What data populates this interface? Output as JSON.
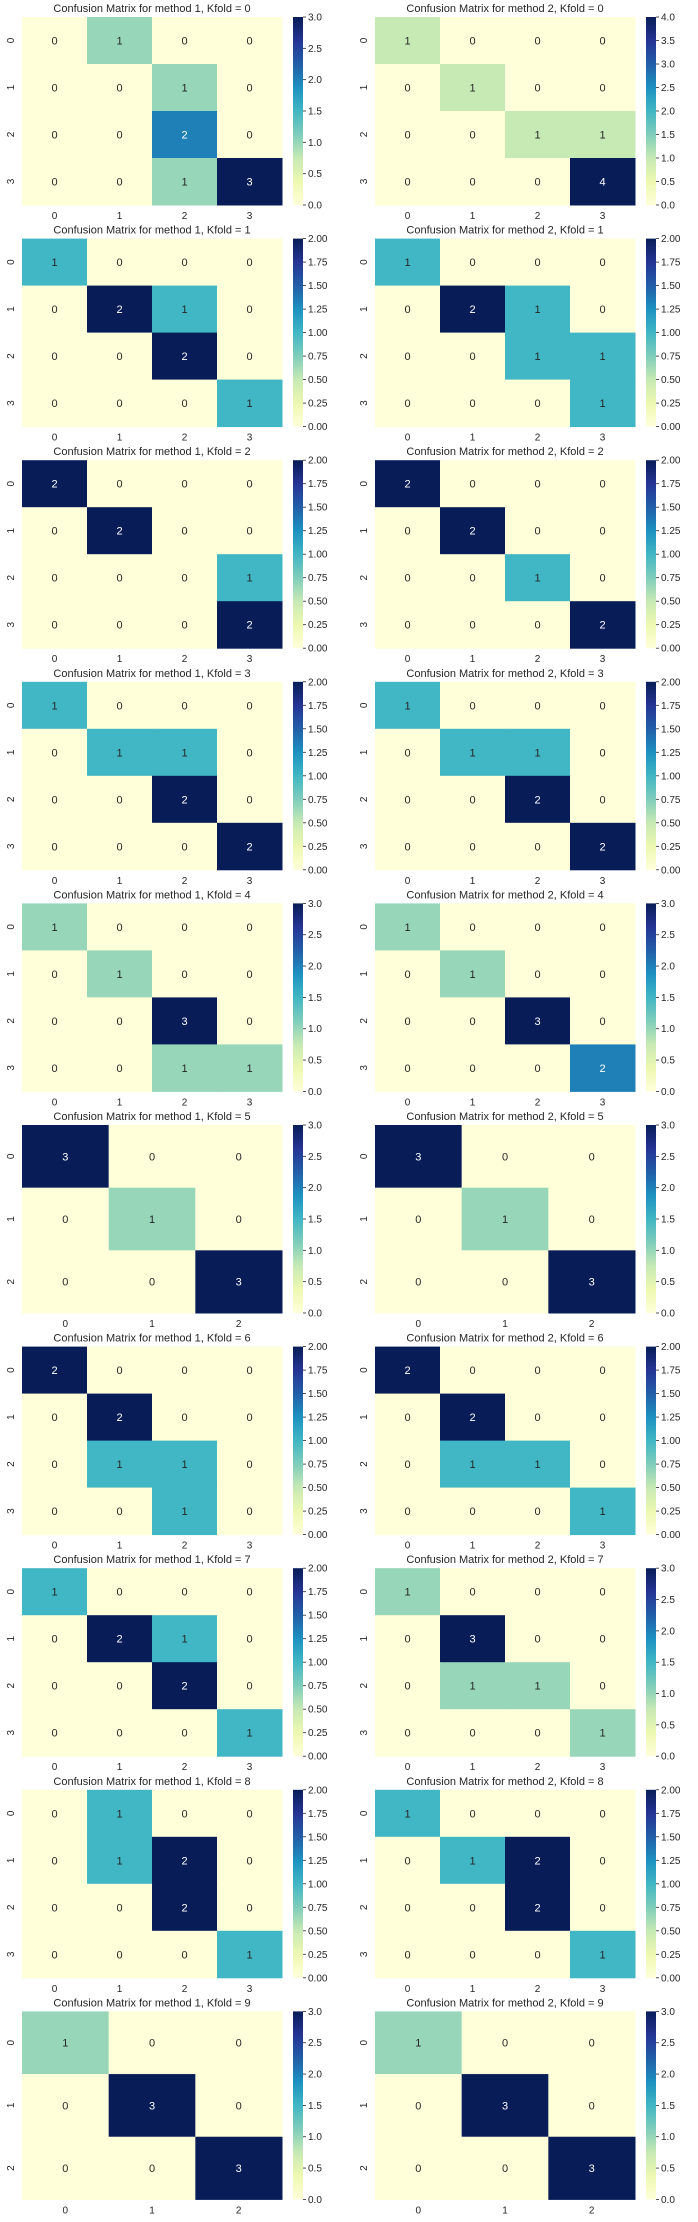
{
  "chart_data": [
    {
      "type": "heatmap",
      "title": "Confusion Matrix for method 1, Kfold = 0",
      "labels": [
        "0",
        "1",
        "2",
        "3"
      ],
      "matrix": [
        [
          0,
          1,
          0,
          0
        ],
        [
          0,
          0,
          1,
          0
        ],
        [
          0,
          0,
          2,
          0
        ],
        [
          0,
          0,
          1,
          3
        ]
      ],
      "vmin": 0,
      "vmax": 3,
      "colorbar_ticks": [
        "0.0",
        "0.5",
        "1.0",
        "1.5",
        "2.0",
        "2.5",
        "3.0"
      ],
      "colorbar_values": [
        0,
        0.5,
        1,
        1.5,
        2,
        2.5,
        3
      ]
    },
    {
      "type": "heatmap",
      "title": "Confusion Matrix for method 2, Kfold = 0",
      "labels": [
        "0",
        "1",
        "2",
        "3"
      ],
      "matrix": [
        [
          1,
          0,
          0,
          0
        ],
        [
          0,
          1,
          0,
          0
        ],
        [
          0,
          0,
          1,
          1
        ],
        [
          0,
          0,
          0,
          4
        ]
      ],
      "vmin": 0,
      "vmax": 4,
      "colorbar_ticks": [
        "0.0",
        "0.5",
        "1.0",
        "1.5",
        "2.0",
        "2.5",
        "3.0",
        "3.5",
        "4.0"
      ],
      "colorbar_values": [
        0,
        0.5,
        1,
        1.5,
        2,
        2.5,
        3,
        3.5,
        4
      ]
    },
    {
      "type": "heatmap",
      "title": "Confusion Matrix for method 1, Kfold = 1",
      "labels": [
        "0",
        "1",
        "2",
        "3"
      ],
      "matrix": [
        [
          1,
          0,
          0,
          0
        ],
        [
          0,
          2,
          1,
          0
        ],
        [
          0,
          0,
          2,
          0
        ],
        [
          0,
          0,
          0,
          1
        ]
      ],
      "vmin": 0,
      "vmax": 2,
      "colorbar_ticks": [
        "0.00",
        "0.25",
        "0.50",
        "0.75",
        "1.00",
        "1.25",
        "1.50",
        "1.75",
        "2.00"
      ],
      "colorbar_values": [
        0,
        0.25,
        0.5,
        0.75,
        1,
        1.25,
        1.5,
        1.75,
        2
      ]
    },
    {
      "type": "heatmap",
      "title": "Confusion Matrix for method 2, Kfold = 1",
      "labels": [
        "0",
        "1",
        "2",
        "3"
      ],
      "matrix": [
        [
          1,
          0,
          0,
          0
        ],
        [
          0,
          2,
          1,
          0
        ],
        [
          0,
          0,
          1,
          1
        ],
        [
          0,
          0,
          0,
          1
        ]
      ],
      "vmin": 0,
      "vmax": 2,
      "colorbar_ticks": [
        "0.00",
        "0.25",
        "0.50",
        "0.75",
        "1.00",
        "1.25",
        "1.50",
        "1.75",
        "2.00"
      ],
      "colorbar_values": [
        0,
        0.25,
        0.5,
        0.75,
        1,
        1.25,
        1.5,
        1.75,
        2
      ]
    },
    {
      "type": "heatmap",
      "title": "Confusion Matrix for method 1, Kfold = 2",
      "labels": [
        "0",
        "1",
        "2",
        "3"
      ],
      "matrix": [
        [
          2,
          0,
          0,
          0
        ],
        [
          0,
          2,
          0,
          0
        ],
        [
          0,
          0,
          0,
          1
        ],
        [
          0,
          0,
          0,
          2
        ]
      ],
      "vmin": 0,
      "vmax": 2,
      "colorbar_ticks": [
        "0.00",
        "0.25",
        "0.50",
        "0.75",
        "1.00",
        "1.25",
        "1.50",
        "1.75",
        "2.00"
      ],
      "colorbar_values": [
        0,
        0.25,
        0.5,
        0.75,
        1,
        1.25,
        1.5,
        1.75,
        2
      ]
    },
    {
      "type": "heatmap",
      "title": "Confusion Matrix for method 2, Kfold = 2",
      "labels": [
        "0",
        "1",
        "2",
        "3"
      ],
      "matrix": [
        [
          2,
          0,
          0,
          0
        ],
        [
          0,
          2,
          0,
          0
        ],
        [
          0,
          0,
          1,
          0
        ],
        [
          0,
          0,
          0,
          2
        ]
      ],
      "vmin": 0,
      "vmax": 2,
      "colorbar_ticks": [
        "0.00",
        "0.25",
        "0.50",
        "0.75",
        "1.00",
        "1.25",
        "1.50",
        "1.75",
        "2.00"
      ],
      "colorbar_values": [
        0,
        0.25,
        0.5,
        0.75,
        1,
        1.25,
        1.5,
        1.75,
        2
      ]
    },
    {
      "type": "heatmap",
      "title": "Confusion Matrix for method 1, Kfold = 3",
      "labels": [
        "0",
        "1",
        "2",
        "3"
      ],
      "matrix": [
        [
          1,
          0,
          0,
          0
        ],
        [
          0,
          1,
          1,
          0
        ],
        [
          0,
          0,
          2,
          0
        ],
        [
          0,
          0,
          0,
          2
        ]
      ],
      "vmin": 0,
      "vmax": 2,
      "colorbar_ticks": [
        "0.00",
        "0.25",
        "0.50",
        "0.75",
        "1.00",
        "1.25",
        "1.50",
        "1.75",
        "2.00"
      ],
      "colorbar_values": [
        0,
        0.25,
        0.5,
        0.75,
        1,
        1.25,
        1.5,
        1.75,
        2
      ]
    },
    {
      "type": "heatmap",
      "title": "Confusion Matrix for method 2, Kfold = 3",
      "labels": [
        "0",
        "1",
        "2",
        "3"
      ],
      "matrix": [
        [
          1,
          0,
          0,
          0
        ],
        [
          0,
          1,
          1,
          0
        ],
        [
          0,
          0,
          2,
          0
        ],
        [
          0,
          0,
          0,
          2
        ]
      ],
      "vmin": 0,
      "vmax": 2,
      "colorbar_ticks": [
        "0.00",
        "0.25",
        "0.50",
        "0.75",
        "1.00",
        "1.25",
        "1.50",
        "1.75",
        "2.00"
      ],
      "colorbar_values": [
        0,
        0.25,
        0.5,
        0.75,
        1,
        1.25,
        1.5,
        1.75,
        2
      ]
    },
    {
      "type": "heatmap",
      "title": "Confusion Matrix for method 1, Kfold = 4",
      "labels": [
        "0",
        "1",
        "2",
        "3"
      ],
      "matrix": [
        [
          1,
          0,
          0,
          0
        ],
        [
          0,
          1,
          0,
          0
        ],
        [
          0,
          0,
          3,
          0
        ],
        [
          0,
          0,
          1,
          1
        ]
      ],
      "vmin": 0,
      "vmax": 3,
      "colorbar_ticks": [
        "0.0",
        "0.5",
        "1.0",
        "1.5",
        "2.0",
        "2.5",
        "3.0"
      ],
      "colorbar_values": [
        0,
        0.5,
        1,
        1.5,
        2,
        2.5,
        3
      ]
    },
    {
      "type": "heatmap",
      "title": "Confusion Matrix for method 2, Kfold = 4",
      "labels": [
        "0",
        "1",
        "2",
        "3"
      ],
      "matrix": [
        [
          1,
          0,
          0,
          0
        ],
        [
          0,
          1,
          0,
          0
        ],
        [
          0,
          0,
          3,
          0
        ],
        [
          0,
          0,
          0,
          2
        ]
      ],
      "vmin": 0,
      "vmax": 3,
      "colorbar_ticks": [
        "0.0",
        "0.5",
        "1.0",
        "1.5",
        "2.0",
        "2.5",
        "3.0"
      ],
      "colorbar_values": [
        0,
        0.5,
        1,
        1.5,
        2,
        2.5,
        3
      ]
    },
    {
      "type": "heatmap",
      "title": "Confusion Matrix for method 1, Kfold = 5",
      "labels": [
        "0",
        "1",
        "2"
      ],
      "matrix": [
        [
          3,
          0,
          0
        ],
        [
          0,
          1,
          0
        ],
        [
          0,
          0,
          3
        ]
      ],
      "vmin": 0,
      "vmax": 3,
      "colorbar_ticks": [
        "0.0",
        "0.5",
        "1.0",
        "1.5",
        "2.0",
        "2.5",
        "3.0"
      ],
      "colorbar_values": [
        0,
        0.5,
        1,
        1.5,
        2,
        2.5,
        3
      ]
    },
    {
      "type": "heatmap",
      "title": "Confusion Matrix for method 2, Kfold = 5",
      "labels": [
        "0",
        "1",
        "2"
      ],
      "matrix": [
        [
          3,
          0,
          0
        ],
        [
          0,
          1,
          0
        ],
        [
          0,
          0,
          3
        ]
      ],
      "vmin": 0,
      "vmax": 3,
      "colorbar_ticks": [
        "0.0",
        "0.5",
        "1.0",
        "1.5",
        "2.0",
        "2.5",
        "3.0"
      ],
      "colorbar_values": [
        0,
        0.5,
        1,
        1.5,
        2,
        2.5,
        3
      ]
    },
    {
      "type": "heatmap",
      "title": "Confusion Matrix for method 1, Kfold = 6",
      "labels": [
        "0",
        "1",
        "2",
        "3"
      ],
      "matrix": [
        [
          2,
          0,
          0,
          0
        ],
        [
          0,
          2,
          0,
          0
        ],
        [
          0,
          1,
          1,
          0
        ],
        [
          0,
          0,
          1,
          0
        ]
      ],
      "vmin": 0,
      "vmax": 2,
      "colorbar_ticks": [
        "0.00",
        "0.25",
        "0.50",
        "0.75",
        "1.00",
        "1.25",
        "1.50",
        "1.75",
        "2.00"
      ],
      "colorbar_values": [
        0,
        0.25,
        0.5,
        0.75,
        1,
        1.25,
        1.5,
        1.75,
        2
      ]
    },
    {
      "type": "heatmap",
      "title": "Confusion Matrix for method 2, Kfold = 6",
      "labels": [
        "0",
        "1",
        "2",
        "3"
      ],
      "matrix": [
        [
          2,
          0,
          0,
          0
        ],
        [
          0,
          2,
          0,
          0
        ],
        [
          0,
          1,
          1,
          0
        ],
        [
          0,
          0,
          0,
          1
        ]
      ],
      "vmin": 0,
      "vmax": 2,
      "colorbar_ticks": [
        "0.00",
        "0.25",
        "0.50",
        "0.75",
        "1.00",
        "1.25",
        "1.50",
        "1.75",
        "2.00"
      ],
      "colorbar_values": [
        0,
        0.25,
        0.5,
        0.75,
        1,
        1.25,
        1.5,
        1.75,
        2
      ]
    },
    {
      "type": "heatmap",
      "title": "Confusion Matrix for method 1, Kfold = 7",
      "labels": [
        "0",
        "1",
        "2",
        "3"
      ],
      "matrix": [
        [
          1,
          0,
          0,
          0
        ],
        [
          0,
          2,
          1,
          0
        ],
        [
          0,
          0,
          2,
          0
        ],
        [
          0,
          0,
          0,
          1
        ]
      ],
      "vmin": 0,
      "vmax": 2,
      "colorbar_ticks": [
        "0.00",
        "0.25",
        "0.50",
        "0.75",
        "1.00",
        "1.25",
        "1.50",
        "1.75",
        "2.00"
      ],
      "colorbar_values": [
        0,
        0.25,
        0.5,
        0.75,
        1,
        1.25,
        1.5,
        1.75,
        2
      ]
    },
    {
      "type": "heatmap",
      "title": "Confusion Matrix for method 2, Kfold = 7",
      "labels": [
        "0",
        "1",
        "2",
        "3"
      ],
      "matrix": [
        [
          1,
          0,
          0,
          0
        ],
        [
          0,
          3,
          0,
          0
        ],
        [
          0,
          1,
          1,
          0
        ],
        [
          0,
          0,
          0,
          1
        ]
      ],
      "vmin": 0,
      "vmax": 3,
      "colorbar_ticks": [
        "0.0",
        "0.5",
        "1.0",
        "1.5",
        "2.0",
        "2.5",
        "3.0"
      ],
      "colorbar_values": [
        0,
        0.5,
        1,
        1.5,
        2,
        2.5,
        3
      ]
    },
    {
      "type": "heatmap",
      "title": "Confusion Matrix for method 1, Kfold = 8",
      "labels": [
        "0",
        "1",
        "2",
        "3"
      ],
      "matrix": [
        [
          0,
          1,
          0,
          0
        ],
        [
          0,
          1,
          2,
          0
        ],
        [
          0,
          0,
          2,
          0
        ],
        [
          0,
          0,
          0,
          1
        ]
      ],
      "vmin": 0,
      "vmax": 2,
      "colorbar_ticks": [
        "0.00",
        "0.25",
        "0.50",
        "0.75",
        "1.00",
        "1.25",
        "1.50",
        "1.75",
        "2.00"
      ],
      "colorbar_values": [
        0,
        0.25,
        0.5,
        0.75,
        1,
        1.25,
        1.5,
        1.75,
        2
      ]
    },
    {
      "type": "heatmap",
      "title": "Confusion Matrix for method 2, Kfold = 8",
      "labels": [
        "0",
        "1",
        "2",
        "3"
      ],
      "matrix": [
        [
          1,
          0,
          0,
          0
        ],
        [
          0,
          1,
          2,
          0
        ],
        [
          0,
          0,
          2,
          0
        ],
        [
          0,
          0,
          0,
          1
        ]
      ],
      "vmin": 0,
      "vmax": 2,
      "colorbar_ticks": [
        "0.00",
        "0.25",
        "0.50",
        "0.75",
        "1.00",
        "1.25",
        "1.50",
        "1.75",
        "2.00"
      ],
      "colorbar_values": [
        0,
        0.25,
        0.5,
        0.75,
        1,
        1.25,
        1.5,
        1.75,
        2
      ]
    },
    {
      "type": "heatmap",
      "title": "Confusion Matrix for method 1, Kfold = 9",
      "labels": [
        "0",
        "1",
        "2"
      ],
      "matrix": [
        [
          1,
          0,
          0
        ],
        [
          0,
          3,
          0
        ],
        [
          0,
          0,
          3
        ]
      ],
      "vmin": 0,
      "vmax": 3,
      "colorbar_ticks": [
        "0.0",
        "0.5",
        "1.0",
        "1.5",
        "2.0",
        "2.5",
        "3.0"
      ],
      "colorbar_values": [
        0,
        0.5,
        1,
        1.5,
        2,
        2.5,
        3
      ]
    },
    {
      "type": "heatmap",
      "title": "Confusion Matrix for method 2, Kfold = 9",
      "labels": [
        "0",
        "1",
        "2"
      ],
      "matrix": [
        [
          1,
          0,
          0
        ],
        [
          0,
          3,
          0
        ],
        [
          0,
          0,
          3
        ]
      ],
      "vmin": 0,
      "vmax": 3,
      "colorbar_ticks": [
        "0.0",
        "0.5",
        "1.0",
        "1.5",
        "2.0",
        "2.5",
        "3.0"
      ],
      "colorbar_values": [
        0,
        0.5,
        1,
        1.5,
        2,
        2.5,
        3
      ]
    }
  ],
  "colorscale": [
    "#ffffd9",
    "#edf8b1",
    "#c7e9b4",
    "#7fcdbb",
    "#41b6c4",
    "#1d91c0",
    "#225ea8",
    "#253494",
    "#081d58"
  ],
  "text_dark": "#262626",
  "text_light": "#ffffff"
}
